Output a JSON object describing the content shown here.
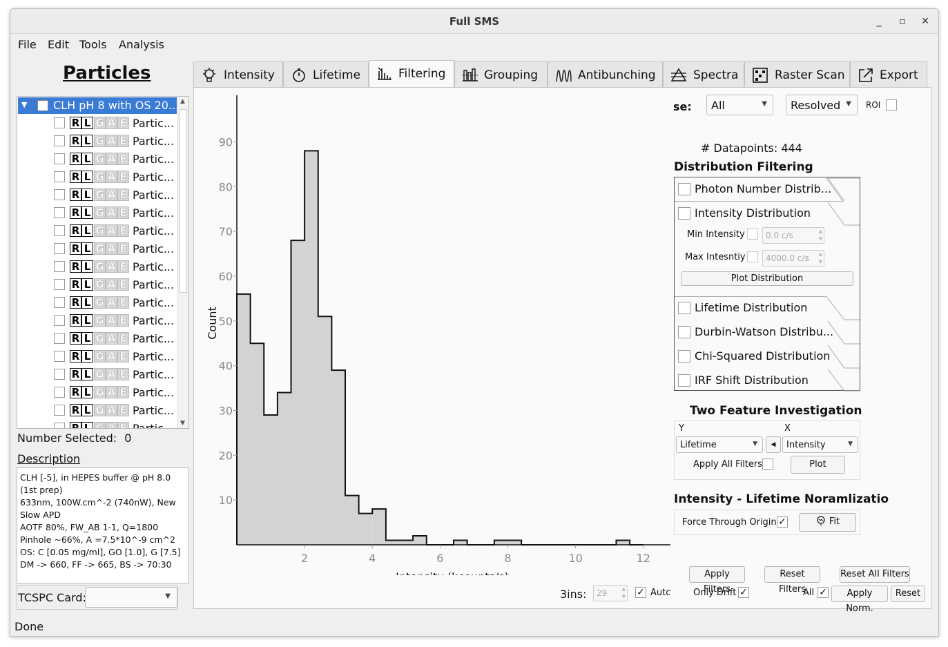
{
  "window": {
    "title": "Full SMS",
    "minimize": "_",
    "maximize": "▫",
    "close": "✕"
  },
  "menu": [
    "File",
    "Edit",
    "Tools",
    "Analysis"
  ],
  "particles_title": "Particles",
  "tree": {
    "root_label": "CLH pH 8 with OS 20...",
    "row_letters": [
      "R",
      "L",
      "G",
      "A",
      "E"
    ],
    "rows": [
      "Partic...",
      "Partic...",
      "Partic...",
      "Partic...",
      "Partic...",
      "Partic...",
      "Partic...",
      "Partic...",
      "Partic...",
      "Partic...",
      "Partic...",
      "Partic...",
      "Partic...",
      "Partic...",
      "Partic...",
      "Partic...",
      "Partic...",
      "Partic..."
    ]
  },
  "number_selected": {
    "label": "Number Selected:",
    "value": "0"
  },
  "description": {
    "label": "Description",
    "text": "CLH [-5], in HEPES buffer @ pH 8.0 (1st prep)\n633nm, 100W.cm^-2 (740nW), New Slow APD\nAOTF 80%, FW_AB 1-1, Q=1800\nPinhole ~66%, A =7.5*10^-9 cm^2\nOS: C [0.05 mg/ml], GO [1.0], G [7.5]\nDM -> 660, FF -> 665, BS -> 70:30"
  },
  "tcspc": {
    "label": "TCSPC Card:",
    "value": ""
  },
  "status": "Done",
  "tabs": [
    {
      "label": "Intensity",
      "icon": "lightbulb-icon"
    },
    {
      "label": "Lifetime",
      "icon": "stopwatch-icon"
    },
    {
      "label": "Filtering",
      "icon": "filter-icon"
    },
    {
      "label": "Grouping",
      "icon": "grouping-icon"
    },
    {
      "label": "Antibunching",
      "icon": "antibunching-icon"
    },
    {
      "label": "Spectra",
      "icon": "spectra-icon"
    },
    {
      "label": "Raster Scan",
      "icon": "raster-scan-icon"
    },
    {
      "label": "Export",
      "icon": "export-icon"
    }
  ],
  "filtering": {
    "use_label": "se:",
    "use_value": "All",
    "resolved_value": "Resolved",
    "roi_label": "ROI",
    "datapoints": "# Datapoints: 444",
    "dist_heading": "Distribution Filtering",
    "dist_items": [
      "Photon Number Distrib...",
      "Intensity Distribution",
      "Lifetime Distribution",
      "Durbin-Watson Distribu...",
      "Chi-Squared Distribution",
      "IRF Shift Distribution"
    ],
    "min_intensity_label": "Min Intensity",
    "min_intensity_value": "0.0 c/s",
    "max_intensity_label": "Max Intesntiy",
    "max_intensity_value": "4000.0 c/s",
    "plot_distribution": "Plot Distribution",
    "tfi_heading": "Two Feature Investigation",
    "y_label": "Y",
    "x_label": "X",
    "y_value": "Lifetime",
    "x_value": "Intensity",
    "apply_all_filters": "Apply All Filters",
    "plot_button": "Plot",
    "norm_heading": "Intensity - Lifetime Noramlizatio",
    "force_origin": "Force Through Origin",
    "force_origin_check": "✓",
    "fit_button": "Fit",
    "bins_label": "3ins:",
    "bins_value": "29",
    "auto_label": "Autc",
    "auto_check": "✓",
    "apply_filters": "Apply Filters",
    "reset_filters": "Reset Filters",
    "reset_all_filters": "Reset All Filters",
    "only_drift": "Only Drift",
    "only_drift_check": "✓",
    "all_label": "All",
    "all_check": "✓",
    "apply_norm": "Apply Norm.",
    "reset": "Reset"
  },
  "chart_data": {
    "type": "bar",
    "xlabel": "Intensity (kcounts/s)",
    "ylabel": "Count",
    "xlim": [
      0,
      12.8
    ],
    "ylim": [
      0,
      95
    ],
    "xticks": [
      2,
      4,
      6,
      8,
      10,
      12
    ],
    "yticks": [
      10,
      20,
      30,
      40,
      50,
      60,
      70,
      80,
      90
    ],
    "bin_edges": [
      0,
      0.4,
      0.8,
      1.2,
      1.6,
      2.0,
      2.4,
      2.8,
      3.2,
      3.6,
      4.0,
      4.4,
      4.8,
      5.2,
      5.6,
      6.0,
      6.4,
      6.8,
      7.2,
      7.6,
      8.0,
      8.4,
      8.8,
      9.2,
      9.6,
      10.0,
      10.4,
      10.8,
      11.2,
      11.6,
      12.0
    ],
    "values": [
      56,
      45,
      29,
      34,
      68,
      88,
      51,
      39,
      11,
      7,
      8,
      1,
      1,
      2,
      0,
      0,
      1,
      0,
      0,
      1,
      1,
      0,
      0,
      0,
      0,
      0,
      0,
      0,
      1,
      0
    ],
    "fill_color": "#d3d3d3",
    "line_color": "#111111"
  }
}
